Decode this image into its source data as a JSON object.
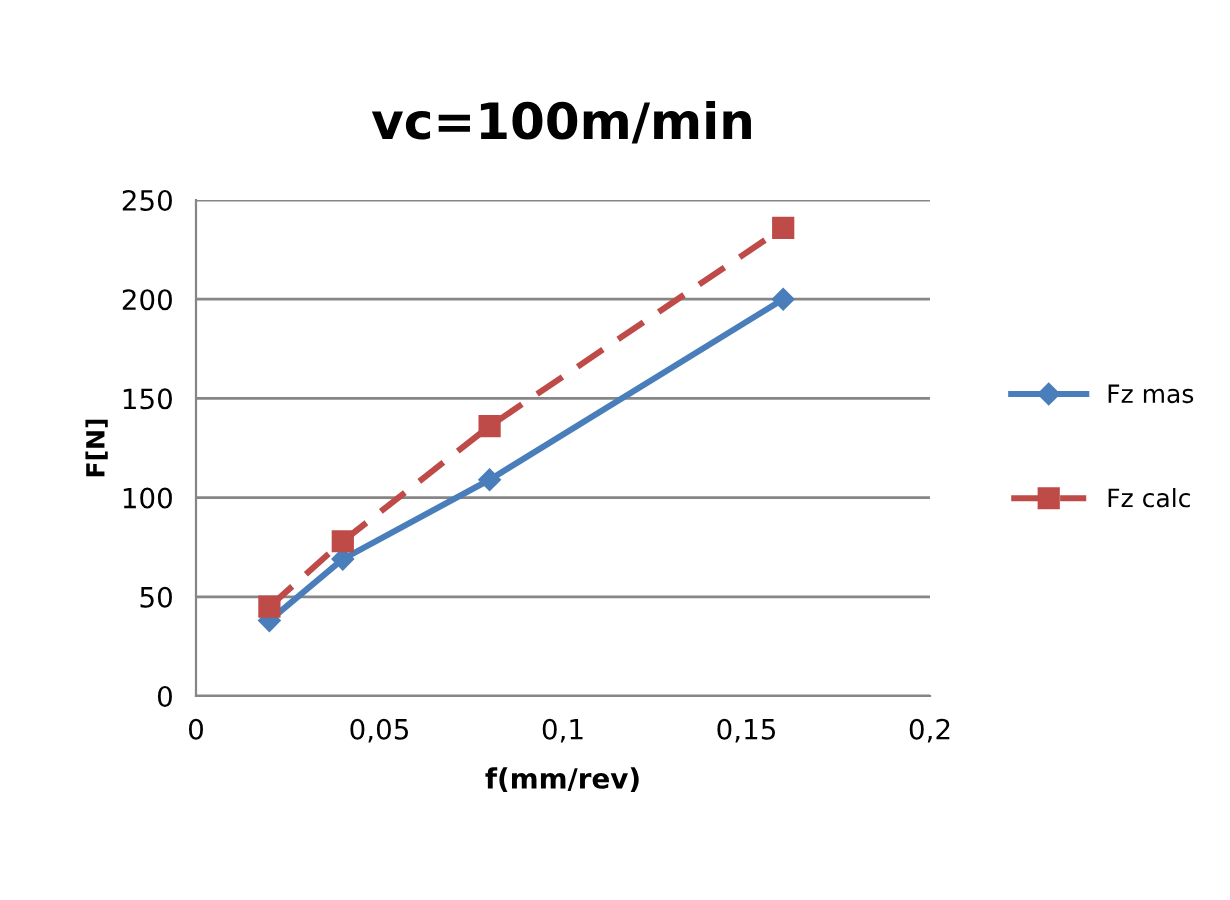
{
  "chart_data": {
    "type": "line",
    "title": "vc=100m/min",
    "xlabel": "f(mm/rev)",
    "ylabel": "F[N]",
    "x": [
      0.02,
      0.04,
      0.08,
      0.16
    ],
    "series": [
      {
        "name": "Fz mas",
        "color": "#4a7ebb",
        "values": [
          38,
          69,
          109,
          200
        ],
        "marker": "diamond",
        "line_style": "solid"
      },
      {
        "name": "Fz calc",
        "color": "#be4b48",
        "values": [
          45,
          78,
          136,
          236
        ],
        "marker": "square",
        "line_style": "dashed"
      }
    ],
    "xlim": [
      0,
      0.2
    ],
    "xticks": [
      {
        "value": 0,
        "label": "0"
      },
      {
        "value": 0.05,
        "label": "0,05"
      },
      {
        "value": 0.1,
        "label": "0,1"
      },
      {
        "value": 0.15,
        "label": "0,15"
      },
      {
        "value": 0.2,
        "label": "0,2"
      }
    ],
    "ylim": [
      0,
      250
    ],
    "yticks": [
      0,
      50,
      100,
      150,
      200,
      250
    ],
    "grid": "y",
    "legend": "right"
  }
}
